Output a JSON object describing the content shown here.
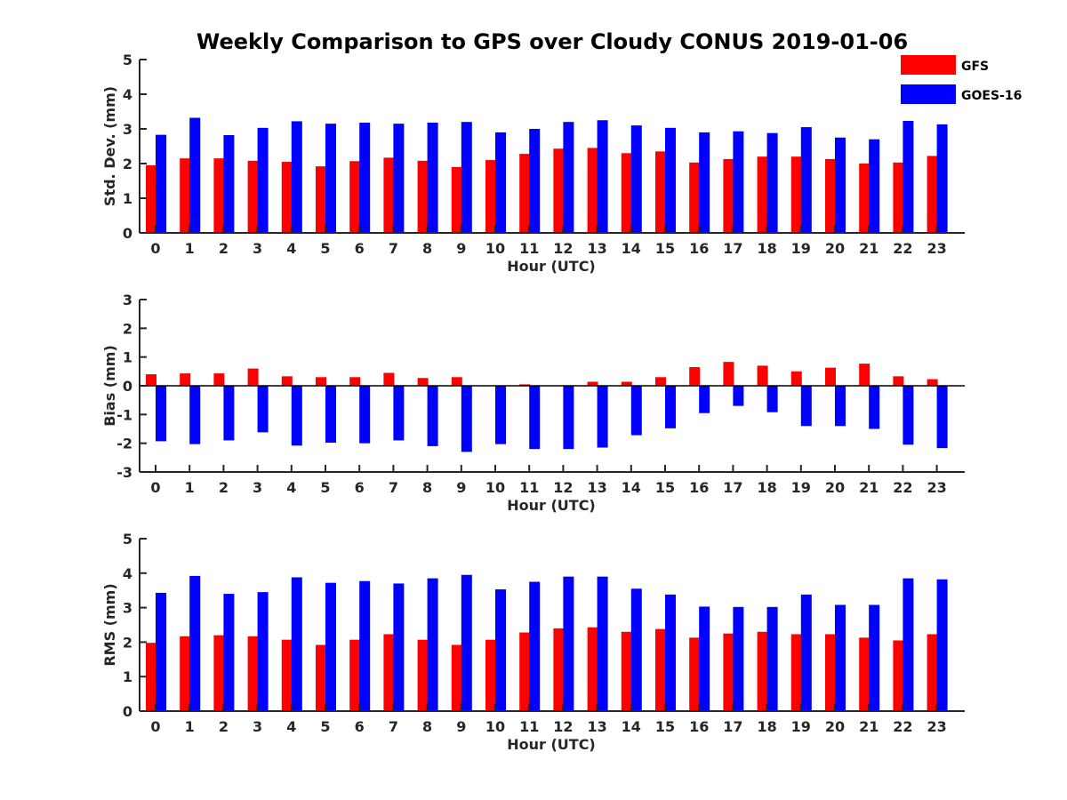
{
  "title": "Weekly Comparison to GPS over Cloudy CONUS 2019-01-06",
  "colors": {
    "GFS": "#ff0000",
    "GOES-16": "#0000ff",
    "axis": "#262626"
  },
  "legend": {
    "position": "top-right",
    "entries": [
      "GFS",
      "GOES-16"
    ]
  },
  "chart_data": [
    {
      "type": "bar",
      "xlabel": "Hour (UTC)",
      "ylabel": "Std. Dev. (mm)",
      "ylim": [
        0,
        5
      ],
      "yticks": [
        0,
        1,
        2,
        3,
        4,
        5
      ],
      "categories": [
        "0",
        "1",
        "2",
        "3",
        "4",
        "5",
        "6",
        "7",
        "8",
        "9",
        "10",
        "11",
        "12",
        "13",
        "14",
        "15",
        "16",
        "17",
        "18",
        "19",
        "20",
        "21",
        "22",
        "23"
      ],
      "series": [
        {
          "name": "GFS",
          "values": [
            1.95,
            2.15,
            2.15,
            2.08,
            2.05,
            1.92,
            2.07,
            2.17,
            2.08,
            1.9,
            2.1,
            2.28,
            2.43,
            2.45,
            2.3,
            2.35,
            2.03,
            2.13,
            2.2,
            2.2,
            2.13,
            2.0,
            2.03,
            2.22
          ]
        },
        {
          "name": "GOES-16",
          "values": [
            2.83,
            3.32,
            2.82,
            3.03,
            3.22,
            3.15,
            3.18,
            3.15,
            3.18,
            3.2,
            2.9,
            3.0,
            3.2,
            3.25,
            3.1,
            3.03,
            2.9,
            2.93,
            2.88,
            3.05,
            2.75,
            2.7,
            3.23,
            3.13
          ]
        }
      ]
    },
    {
      "type": "bar",
      "xlabel": "Hour (UTC)",
      "ylabel": "Bias (mm)",
      "ylim": [
        -3,
        3
      ],
      "yticks": [
        -3,
        -2,
        -1,
        0,
        1,
        2,
        3
      ],
      "categories": [
        "0",
        "1",
        "2",
        "3",
        "4",
        "5",
        "6",
        "7",
        "8",
        "9",
        "10",
        "11",
        "12",
        "13",
        "14",
        "15",
        "16",
        "17",
        "18",
        "19",
        "20",
        "21",
        "22",
        "23"
      ],
      "series": [
        {
          "name": "GFS",
          "values": [
            0.4,
            0.43,
            0.43,
            0.6,
            0.33,
            0.3,
            0.3,
            0.45,
            0.27,
            0.3,
            0.0,
            0.05,
            0.0,
            0.14,
            0.14,
            0.3,
            0.65,
            0.83,
            0.7,
            0.5,
            0.63,
            0.77,
            0.33,
            0.23
          ]
        },
        {
          "name": "GOES-16",
          "values": [
            -1.93,
            -2.03,
            -1.9,
            -1.62,
            -2.08,
            -1.98,
            -2.0,
            -1.9,
            -2.1,
            -2.3,
            -2.03,
            -2.2,
            -2.2,
            -2.15,
            -1.72,
            -1.48,
            -0.95,
            -0.7,
            -0.92,
            -1.4,
            -1.4,
            -1.5,
            -2.05,
            -2.17
          ]
        }
      ]
    },
    {
      "type": "bar",
      "xlabel": "Hour (UTC)",
      "ylabel": "RMS (mm)",
      "ylim": [
        0,
        5
      ],
      "yticks": [
        0,
        1,
        2,
        3,
        4,
        5
      ],
      "categories": [
        "0",
        "1",
        "2",
        "3",
        "4",
        "5",
        "6",
        "7",
        "8",
        "9",
        "10",
        "11",
        "12",
        "13",
        "14",
        "15",
        "16",
        "17",
        "18",
        "19",
        "20",
        "21",
        "22",
        "23"
      ],
      "series": [
        {
          "name": "GFS",
          "values": [
            1.98,
            2.17,
            2.2,
            2.17,
            2.07,
            1.92,
            2.07,
            2.23,
            2.07,
            1.92,
            2.07,
            2.28,
            2.4,
            2.43,
            2.3,
            2.38,
            2.13,
            2.25,
            2.3,
            2.23,
            2.23,
            2.13,
            2.05,
            2.23
          ]
        },
        {
          "name": "GOES-16",
          "values": [
            3.43,
            3.92,
            3.4,
            3.45,
            3.88,
            3.72,
            3.77,
            3.7,
            3.85,
            3.95,
            3.53,
            3.75,
            3.9,
            3.9,
            3.55,
            3.38,
            3.03,
            3.02,
            3.02,
            3.38,
            3.08,
            3.08,
            3.85,
            3.82
          ]
        }
      ]
    }
  ]
}
